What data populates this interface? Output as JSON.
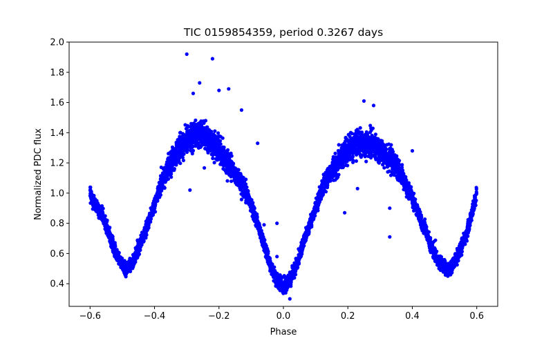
{
  "chart_data": {
    "type": "scatter",
    "title": "TIC 0159854359, period 0.3267 days",
    "xlabel": "Phase",
    "ylabel": "Normalized PDC flux",
    "xlim": [
      -0.665,
      0.665
    ],
    "ylim": [
      0.25,
      2.0
    ],
    "xticks": [
      -0.6,
      -0.4,
      -0.2,
      0.0,
      0.2,
      0.4,
      0.6
    ],
    "xtick_labels": [
      "−0.6",
      "−0.4",
      "−0.2",
      "0.0",
      "0.2",
      "0.4",
      "0.6"
    ],
    "yticks": [
      0.4,
      0.6,
      0.8,
      1.0,
      1.2,
      1.4,
      1.6,
      1.8,
      2.0
    ],
    "ytick_labels": [
      "0.4",
      "0.6",
      "0.8",
      "1.0",
      "1.2",
      "1.4",
      "1.6",
      "1.8",
      "2.0"
    ],
    "grid": false,
    "marker_color": "#0000ff",
    "series": [
      {
        "x": [
          -0.6,
          -0.58,
          -0.56,
          -0.54,
          -0.52,
          -0.5,
          -0.49,
          -0.48,
          -0.46,
          -0.44,
          -0.42,
          -0.4,
          -0.38,
          -0.36,
          -0.34,
          -0.32,
          -0.3,
          -0.28,
          -0.26,
          -0.24,
          -0.22,
          -0.2,
          -0.18,
          -0.16,
          -0.14,
          -0.12,
          -0.1,
          -0.08,
          -0.06,
          -0.04,
          -0.02,
          0.0,
          0.02,
          0.04,
          0.06,
          0.08,
          0.1,
          0.12,
          0.14,
          0.16,
          0.18,
          0.2,
          0.22,
          0.24,
          0.26,
          0.28,
          0.3,
          0.32,
          0.34,
          0.36,
          0.38,
          0.4,
          0.42,
          0.44,
          0.46,
          0.48,
          0.5,
          0.51,
          0.52,
          0.54,
          0.56,
          0.58,
          0.6
        ],
        "y": [
          1.0,
          0.9,
          0.84,
          0.72,
          0.6,
          0.52,
          0.49,
          0.5,
          0.58,
          0.68,
          0.8,
          0.92,
          1.06,
          1.16,
          1.24,
          1.3,
          1.35,
          1.38,
          1.39,
          1.37,
          1.34,
          1.28,
          1.22,
          1.16,
          1.1,
          1.02,
          0.92,
          0.8,
          0.66,
          0.52,
          0.42,
          0.38,
          0.42,
          0.52,
          0.66,
          0.78,
          0.9,
          1.02,
          1.12,
          1.18,
          1.24,
          1.29,
          1.32,
          1.33,
          1.33,
          1.32,
          1.29,
          1.25,
          1.2,
          1.14,
          1.06,
          0.96,
          0.86,
          0.76,
          0.64,
          0.56,
          0.5,
          0.49,
          0.51,
          0.58,
          0.68,
          0.82,
          1.0
        ]
      }
    ],
    "outliers": [
      {
        "x": -0.3,
        "y": 1.92
      },
      {
        "x": -0.22,
        "y": 1.89
      },
      {
        "x": -0.26,
        "y": 1.73
      },
      {
        "x": -0.28,
        "y": 1.66
      },
      {
        "x": -0.17,
        "y": 1.69
      },
      {
        "x": -0.2,
        "y": 1.68
      },
      {
        "x": -0.13,
        "y": 1.55
      },
      {
        "x": -0.08,
        "y": 1.33
      },
      {
        "x": -0.29,
        "y": 1.02
      },
      {
        "x": -0.06,
        "y": 0.79
      },
      {
        "x": -0.02,
        "y": 0.8
      },
      {
        "x": 0.25,
        "y": 1.61
      },
      {
        "x": 0.28,
        "y": 1.58
      },
      {
        "x": 0.19,
        "y": 0.87
      },
      {
        "x": 0.23,
        "y": 1.03
      },
      {
        "x": 0.33,
        "y": 0.71
      },
      {
        "x": 0.33,
        "y": 0.9
      },
      {
        "x": 0.02,
        "y": 0.3
      },
      {
        "x": -0.02,
        "y": 0.58
      },
      {
        "x": 0.4,
        "y": 1.28
      }
    ]
  }
}
